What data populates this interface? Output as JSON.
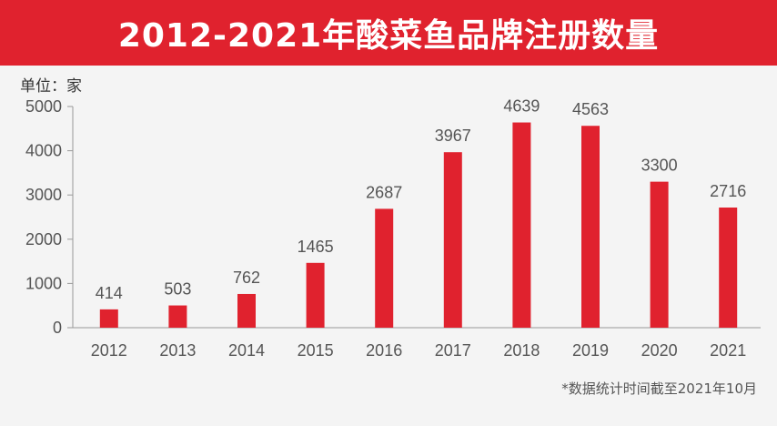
{
  "header": {
    "title": "2012-2021年酸菜鱼品牌注册数量"
  },
  "unit_text": "单位：家",
  "footnote": "*数据统计时间截至2021年10月",
  "colors": {
    "accent": "#e0222e",
    "background": "#f4f4f4",
    "axis": "#999999",
    "text": "#555555"
  },
  "chart_data": {
    "type": "bar",
    "title": "2012-2021年酸菜鱼品牌注册数量",
    "ylabel": "单位：家",
    "xlabel": "",
    "categories": [
      "2012",
      "2013",
      "2014",
      "2015",
      "2016",
      "2017",
      "2018",
      "2019",
      "2020",
      "2021"
    ],
    "values": [
      414,
      503,
      762,
      1465,
      2687,
      3967,
      4639,
      4563,
      3300,
      2716
    ],
    "yticks": [
      0,
      1000,
      2000,
      3000,
      4000,
      5000
    ],
    "ylim": [
      0,
      5000
    ],
    "grid": false,
    "legend": "none"
  }
}
